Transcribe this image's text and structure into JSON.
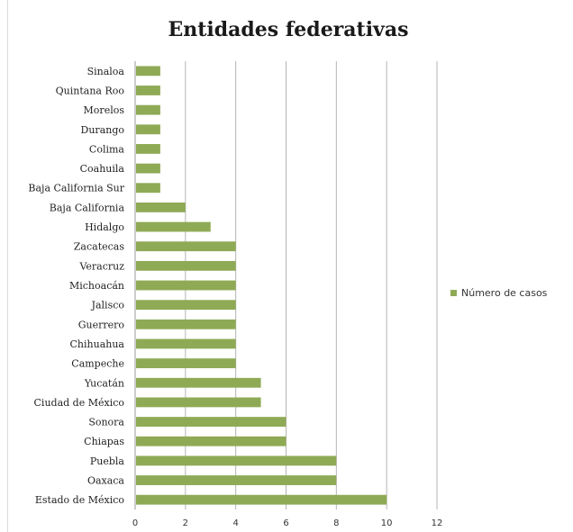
{
  "chart_data": {
    "type": "bar",
    "orientation": "horizontal",
    "title": "Entidades federativas",
    "xlabel": "",
    "ylabel": "",
    "xlim": [
      0,
      12
    ],
    "ticks": [
      "0",
      "2",
      "4",
      "6",
      "8",
      "10",
      "12"
    ],
    "categories": [
      "Sinaloa",
      "Quintana Roo",
      "Morelos",
      "Durango",
      "Colima",
      "Coahuila",
      "Baja California Sur",
      "Baja California",
      "Hidalgo",
      "Zacatecas",
      "Veracruz",
      "Michoacán",
      "Jalisco",
      "Guerrero",
      "Chihuahua",
      "Campeche",
      "Yucatán",
      "Ciudad de México",
      "Sonora",
      "Chiapas",
      "Puebla",
      "Oaxaca",
      "Estado de México"
    ],
    "series": [
      {
        "name": "Número de casos",
        "values": [
          1,
          1,
          1,
          1,
          1,
          1,
          1,
          2,
          3,
          4,
          4,
          4,
          4,
          4,
          4,
          4,
          5,
          5,
          6,
          6,
          8,
          8,
          10
        ]
      }
    ],
    "grid": true,
    "legend_position": "right",
    "bar_color": "#8faa55"
  }
}
